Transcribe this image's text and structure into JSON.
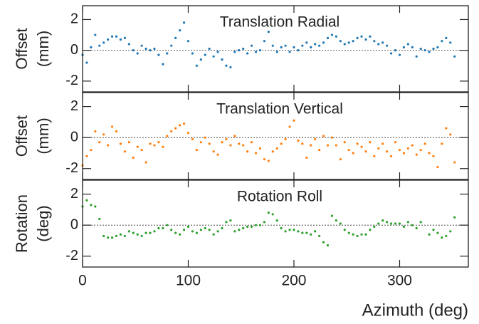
{
  "chart_data": [
    {
      "type": "scatter",
      "title": "Translation Radial",
      "ylabel": [
        "Offset",
        "(mm)"
      ],
      "color": "#1f77b4",
      "xlim": [
        0,
        365
      ],
      "xticks": [
        0,
        100,
        200,
        300
      ],
      "show_xtick_labels": false,
      "ylim": [
        -2.7,
        2.9
      ],
      "yticks": [
        -2,
        0,
        2
      ],
      "reference_line": 0,
      "x": [
        0,
        4,
        8,
        12,
        16,
        20,
        24,
        28,
        32,
        36,
        40,
        44,
        48,
        52,
        56,
        60,
        64,
        68,
        72,
        76,
        80,
        84,
        88,
        92,
        96,
        100,
        104,
        108,
        112,
        116,
        120,
        124,
        128,
        132,
        136,
        140,
        144,
        148,
        152,
        156,
        160,
        164,
        168,
        172,
        176,
        180,
        184,
        188,
        192,
        196,
        200,
        204,
        208,
        212,
        216,
        220,
        224,
        228,
        232,
        236,
        240,
        244,
        248,
        252,
        256,
        260,
        264,
        268,
        272,
        276,
        280,
        284,
        288,
        292,
        296,
        300,
        304,
        308,
        312,
        316,
        320,
        324,
        328,
        332,
        336,
        340,
        344,
        348,
        352
      ],
      "values": [
        -0.3,
        -0.8,
        0.2,
        1.0,
        0.3,
        0.5,
        0.7,
        0.9,
        0.9,
        0.7,
        0.8,
        0.4,
        0.0,
        -0.2,
        0.3,
        0.1,
        0.0,
        0.1,
        -0.3,
        -0.9,
        -0.2,
        0.3,
        0.8,
        1.3,
        1.8,
        0.6,
        -0.2,
        -1.0,
        -0.6,
        -0.3,
        0.1,
        -0.4,
        -0.1,
        -0.6,
        -1.0,
        -1.1,
        -0.1,
        0.0,
        0.1,
        -0.2,
        0.3,
        -0.1,
        0.0,
        0.6,
        1.2,
        0.3,
        -0.1,
        0.2,
        0.3,
        -0.1,
        0.2,
        0.0,
        0.3,
        0.5,
        0.2,
        0.4,
        0.3,
        0.5,
        0.8,
        1.0,
        0.9,
        0.6,
        0.4,
        0.5,
        0.6,
        0.8,
        0.9,
        0.7,
        0.9,
        0.6,
        0.4,
        0.5,
        0.3,
        -0.2,
        0.0,
        -0.3,
        0.2,
        0.4,
        0.2,
        -0.4,
        0.1,
        0.0,
        -0.1,
        0.1,
        0.2,
        0.6,
        0.8,
        0.5,
        -0.4
      ]
    },
    {
      "type": "scatter",
      "title": "Translation Vertical",
      "ylabel": [
        "Offset",
        "(mm)"
      ],
      "color": "#ff7f0e",
      "xlim": [
        0,
        365
      ],
      "xticks": [
        0,
        100,
        200,
        300
      ],
      "show_xtick_labels": false,
      "ylim": [
        -2.7,
        2.9
      ],
      "yticks": [
        -2,
        0,
        2
      ],
      "reference_line": 0,
      "x": [
        0,
        4,
        8,
        12,
        16,
        20,
        24,
        28,
        32,
        36,
        40,
        44,
        48,
        52,
        56,
        60,
        64,
        68,
        72,
        76,
        80,
        84,
        88,
        92,
        96,
        100,
        104,
        108,
        112,
        116,
        120,
        124,
        128,
        132,
        136,
        140,
        144,
        148,
        152,
        156,
        160,
        164,
        168,
        172,
        176,
        180,
        184,
        188,
        192,
        196,
        200,
        204,
        208,
        212,
        216,
        220,
        224,
        228,
        232,
        236,
        240,
        244,
        248,
        252,
        256,
        260,
        264,
        268,
        272,
        276,
        280,
        284,
        288,
        292,
        296,
        300,
        304,
        308,
        312,
        316,
        320,
        324,
        328,
        332,
        336,
        340,
        344,
        348,
        352
      ],
      "values": [
        -1.8,
        -1.2,
        -0.8,
        0.4,
        -0.3,
        0.2,
        -0.5,
        0.7,
        0.4,
        -0.4,
        -0.9,
        -0.3,
        -1.3,
        -0.6,
        -0.8,
        -1.6,
        -0.4,
        -0.5,
        -0.3,
        -0.6,
        0.1,
        0.4,
        0.6,
        0.8,
        0.9,
        0.3,
        -0.1,
        -0.8,
        -0.3,
        0.0,
        -0.4,
        -0.9,
        -1.1,
        -0.3,
        -0.1,
        -0.5,
        0.1,
        -0.4,
        -0.5,
        -0.9,
        -0.3,
        -1.0,
        -0.7,
        -1.4,
        -1.5,
        -0.9,
        -0.7,
        -0.4,
        -0.1,
        0.7,
        1.1,
        -0.2,
        -0.4,
        -1.3,
        -0.5,
        -0.1,
        -0.8,
        0.1,
        -0.5,
        0.0,
        -0.5,
        -1.4,
        -0.3,
        -0.8,
        -1.0,
        -0.4,
        -0.6,
        -0.9,
        -0.3,
        -1.2,
        -0.7,
        -0.4,
        -0.9,
        -1.2,
        -0.3,
        -0.8,
        -1.0,
        -0.7,
        -0.5,
        -1.1,
        -0.8,
        -0.4,
        -1.0,
        -1.2,
        -1.9,
        -0.4,
        0.6,
        0.2,
        -1.6
      ]
    },
    {
      "type": "scatter",
      "title": "Rotation Roll",
      "ylabel": [
        "Rotation",
        "(deg)"
      ],
      "xlabel": "Azimuth (deg)",
      "color": "#2ca02c",
      "xlim": [
        0,
        365
      ],
      "xticks": [
        0,
        100,
        200,
        300
      ],
      "show_xtick_labels": true,
      "ylim": [
        -2.7,
        2.9
      ],
      "yticks": [
        -2,
        0,
        2
      ],
      "reference_line": 0,
      "x": [
        0,
        4,
        8,
        12,
        16,
        20,
        24,
        28,
        32,
        36,
        40,
        44,
        48,
        52,
        56,
        60,
        64,
        68,
        72,
        76,
        80,
        84,
        88,
        92,
        96,
        100,
        104,
        108,
        112,
        116,
        120,
        124,
        128,
        132,
        136,
        140,
        144,
        148,
        152,
        156,
        160,
        164,
        168,
        172,
        176,
        180,
        184,
        188,
        192,
        196,
        200,
        204,
        208,
        212,
        216,
        220,
        224,
        228,
        232,
        236,
        240,
        244,
        248,
        252,
        256,
        260,
        264,
        268,
        272,
        276,
        280,
        284,
        288,
        292,
        296,
        300,
        304,
        308,
        312,
        316,
        320,
        324,
        328,
        332,
        336,
        340,
        344,
        348,
        352
      ],
      "values": [
        1.2,
        1.6,
        1.3,
        1.2,
        0.4,
        -0.7,
        -0.8,
        -0.8,
        -0.7,
        -0.6,
        -0.7,
        -0.4,
        -0.5,
        -0.6,
        -0.7,
        -0.5,
        -0.5,
        -0.4,
        -0.2,
        -0.2,
        0.0,
        -0.3,
        -0.5,
        -0.6,
        -0.3,
        -0.1,
        -0.4,
        -0.5,
        -0.3,
        -0.2,
        -0.3,
        -0.6,
        -0.4,
        -0.2,
        0.2,
        0.3,
        -0.4,
        -0.3,
        -0.2,
        -0.1,
        -0.1,
        0.0,
        0.0,
        0.2,
        0.8,
        0.7,
        0.3,
        -0.2,
        -0.4,
        -0.3,
        -0.3,
        -0.4,
        -0.5,
        -0.5,
        -0.6,
        -0.4,
        -0.7,
        -1.1,
        -1.3,
        0.6,
        0.3,
        0.1,
        -0.3,
        -0.5,
        -0.6,
        -0.7,
        -0.6,
        -0.6,
        -0.3,
        -0.1,
        0.1,
        0.3,
        0.2,
        0.1,
        0.1,
        0.1,
        -0.1,
        0.2,
        0.0,
        -0.2,
        0.2,
        null,
        -0.6,
        -0.3,
        -0.5,
        -0.8,
        -0.7,
        -0.4,
        0.5
      ]
    }
  ]
}
